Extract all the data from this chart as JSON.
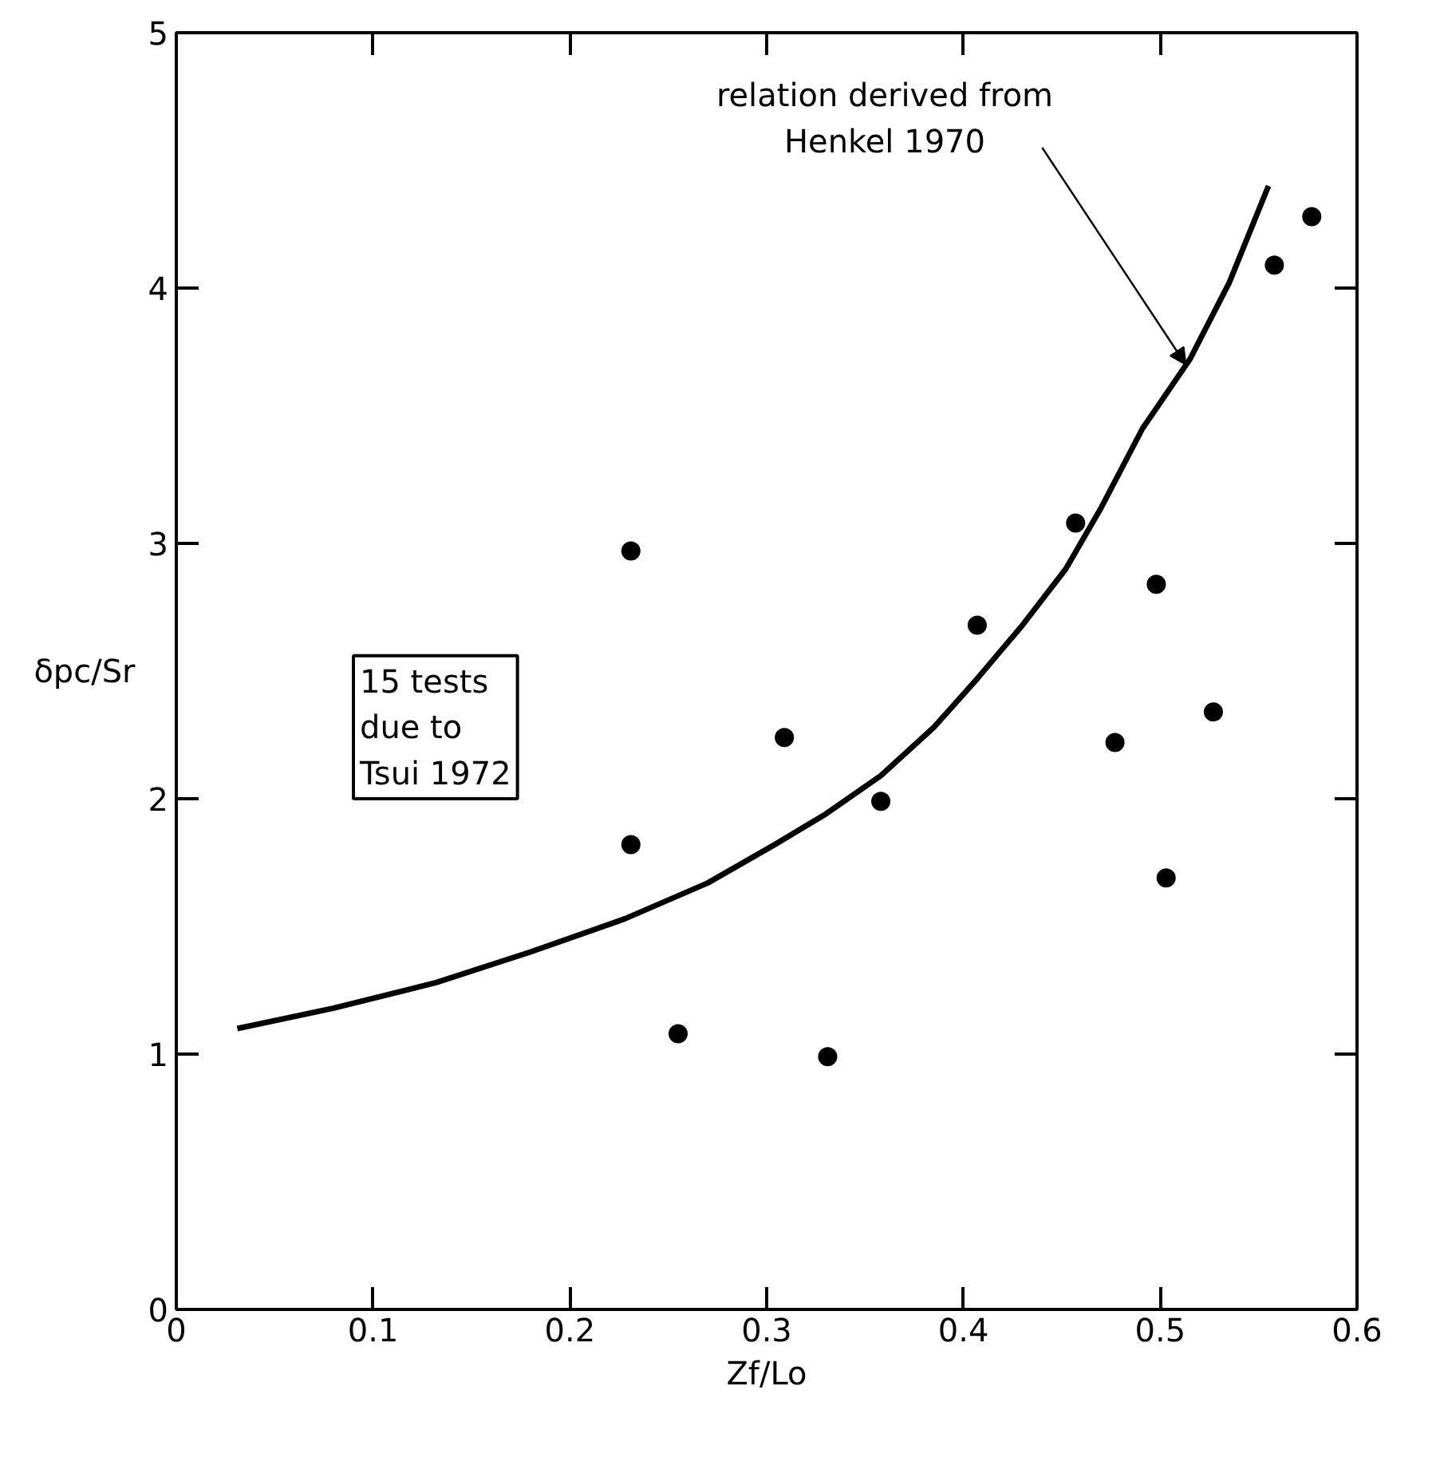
{
  "chart_data": {
    "type": "scatter",
    "xlabel": "Zf/Lo",
    "ylabel": "δpc/Sr",
    "xlim": [
      0,
      0.6
    ],
    "ylim": [
      0,
      5
    ],
    "xticks": [
      0,
      0.1,
      0.2,
      0.3,
      0.4,
      0.5,
      0.6
    ],
    "yticks": [
      0,
      1,
      2,
      3,
      4,
      5
    ],
    "grid": false,
    "marker": "circle",
    "series": [
      {
        "color": "#000000",
        "x": [
          0.231,
          0.231,
          0.255,
          0.309,
          0.331,
          0.358,
          0.407,
          0.457,
          0.477,
          0.498,
          0.503,
          0.527,
          0.558,
          0.577
        ],
        "values": [
          2.97,
          1.82,
          1.08,
          2.24,
          0.99,
          1.99,
          2.68,
          3.08,
          2.22,
          2.84,
          1.69,
          2.34,
          4.09,
          4.28
        ]
      },
      {
        "type": "line",
        "color": "#000000",
        "marker": "none",
        "line_style": "solid",
        "x": [
          0.031,
          0.08,
          0.132,
          0.18,
          0.228,
          0.27,
          0.304,
          0.33,
          0.358,
          0.385,
          0.407,
          0.43,
          0.452,
          0.47,
          0.491,
          0.515,
          0.535,
          0.555
        ],
        "values": [
          1.1,
          1.18,
          1.28,
          1.4,
          1.53,
          1.67,
          1.82,
          1.94,
          2.09,
          2.28,
          2.47,
          2.68,
          2.9,
          3.14,
          3.45,
          3.72,
          4.02,
          4.4
        ]
      }
    ],
    "annotations": [
      {
        "text": "relation derived from\nHenkel 1970",
        "x": 0.513,
        "y": 3.7
      },
      "15 tests\ndue to\nTsui 1972"
    ]
  }
}
